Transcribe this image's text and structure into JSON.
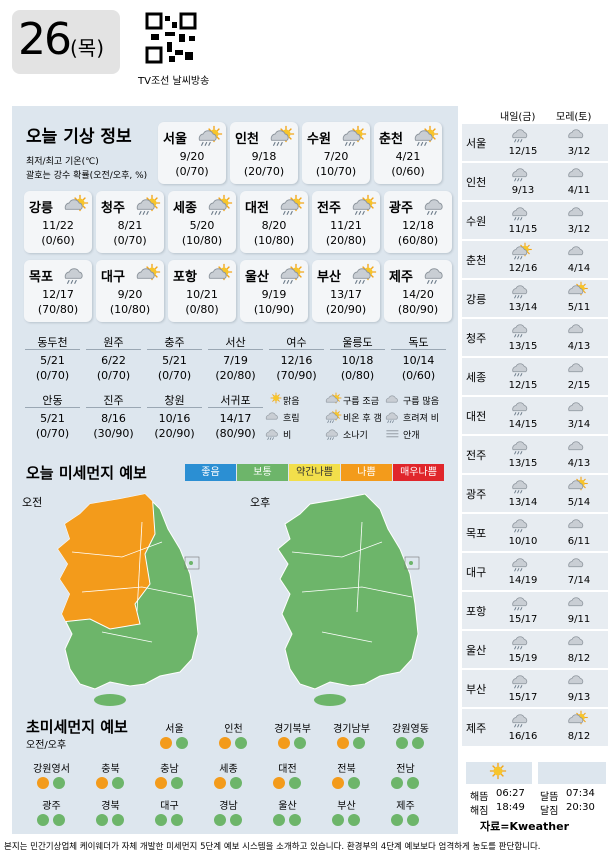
{
  "header": {
    "date": "26",
    "day": "(목)",
    "qr_caption": "TV조선 날씨방송"
  },
  "today": {
    "title": "오늘 기상 정보",
    "note1": "최저/최고 기온(℃)",
    "note2": "괄호는 강수 확률(오전/오후, %)",
    "cities": [
      {
        "name": "서울",
        "temp": "9/20",
        "rain": "(0/70)"
      },
      {
        "name": "인천",
        "temp": "9/18",
        "rain": "(20/70)"
      },
      {
        "name": "수원",
        "temp": "7/20",
        "rain": "(10/70)"
      },
      {
        "name": "춘천",
        "temp": "4/21",
        "rain": "(0/60)"
      },
      {
        "name": "강릉",
        "temp": "11/22",
        "rain": "(0/60)"
      },
      {
        "name": "청주",
        "temp": "8/21",
        "rain": "(0/70)"
      },
      {
        "name": "세종",
        "temp": "5/20",
        "rain": "(10/80)"
      },
      {
        "name": "대전",
        "temp": "8/20",
        "rain": "(10/80)"
      },
      {
        "name": "전주",
        "temp": "11/21",
        "rain": "(20/80)"
      },
      {
        "name": "광주",
        "temp": "12/18",
        "rain": "(60/80)"
      },
      {
        "name": "목포",
        "temp": "12/17",
        "rain": "(70/80)"
      },
      {
        "name": "대구",
        "temp": "9/20",
        "rain": "(10/80)"
      },
      {
        "name": "포항",
        "temp": "10/21",
        "rain": "(0/80)"
      },
      {
        "name": "울산",
        "temp": "9/19",
        "rain": "(10/90)"
      },
      {
        "name": "부산",
        "temp": "13/17",
        "rain": "(20/90)"
      },
      {
        "name": "제주",
        "temp": "14/20",
        "rain": "(80/90)"
      }
    ],
    "small": [
      {
        "name": "동두천",
        "temp": "5/21",
        "rain": "(0/70)"
      },
      {
        "name": "원주",
        "temp": "6/22",
        "rain": "(0/70)"
      },
      {
        "name": "충주",
        "temp": "5/21",
        "rain": "(0/70)"
      },
      {
        "name": "서산",
        "temp": "7/19",
        "rain": "(20/80)"
      },
      {
        "name": "여수",
        "temp": "12/16",
        "rain": "(70/90)"
      },
      {
        "name": "울릉도",
        "temp": "10/18",
        "rain": "(0/80)"
      },
      {
        "name": "독도",
        "temp": "10/14",
        "rain": "(0/60)"
      },
      {
        "name": "안동",
        "temp": "5/21",
        "rain": "(0/70)"
      },
      {
        "name": "진주",
        "temp": "8/16",
        "rain": "(30/90)"
      },
      {
        "name": "창원",
        "temp": "10/16",
        "rain": "(20/90)"
      },
      {
        "name": "서귀포",
        "temp": "14/17",
        "rain": "(80/90)"
      }
    ],
    "legend": [
      "맑음",
      "구름 조금",
      "구름 많음",
      "흐림",
      "비온 후 갬",
      "흐려져 비",
      "비",
      "소나기",
      "안개"
    ]
  },
  "dust": {
    "title": "오늘 미세먼지 예보",
    "am": "오전",
    "pm": "오후",
    "levels": [
      {
        "name": "좋음",
        "color": "#2b8fd3"
      },
      {
        "name": "보통",
        "color": "#6db56a"
      },
      {
        "name": "약간나쁨",
        "color": "#f2df4b"
      },
      {
        "name": "나쁨",
        "color": "#f39b1b"
      },
      {
        "name": "매우나쁨",
        "color": "#e0262b"
      }
    ]
  },
  "fine": {
    "title": "초미세먼지 예보",
    "subtitle": "오전/오후",
    "regions": [
      {
        "name": "서울",
        "am": "나쁨",
        "pm": "보통"
      },
      {
        "name": "인천",
        "am": "나쁨",
        "pm": "보통"
      },
      {
        "name": "경기북부",
        "am": "나쁨",
        "pm": "보통"
      },
      {
        "name": "경기남부",
        "am": "나쁨",
        "pm": "보통"
      },
      {
        "name": "강원영동",
        "am": "보통",
        "pm": "보통"
      },
      {
        "name": "강원영서",
        "am": "나쁨",
        "pm": "보통"
      },
      {
        "name": "충북",
        "am": "나쁨",
        "pm": "보통"
      },
      {
        "name": "충남",
        "am": "나쁨",
        "pm": "보통"
      },
      {
        "name": "세종",
        "am": "나쁨",
        "pm": "보통"
      },
      {
        "name": "대전",
        "am": "나쁨",
        "pm": "보통"
      },
      {
        "name": "전북",
        "am": "나쁨",
        "pm": "보통"
      },
      {
        "name": "전남",
        "am": "보통",
        "pm": "보통"
      },
      {
        "name": "광주",
        "am": "보통",
        "pm": "보통"
      },
      {
        "name": "경북",
        "am": "보통",
        "pm": "보통"
      },
      {
        "name": "대구",
        "am": "보통",
        "pm": "보통"
      },
      {
        "name": "경남",
        "am": "보통",
        "pm": "보통"
      },
      {
        "name": "울산",
        "am": "보통",
        "pm": "보통"
      },
      {
        "name": "부산",
        "am": "보통",
        "pm": "보통"
      },
      {
        "name": "제주",
        "am": "보통",
        "pm": "보통"
      }
    ]
  },
  "forecast": {
    "day1": "내일(금)",
    "day2": "모레(토)",
    "rows": [
      {
        "name": "서울",
        "d1": "12/15",
        "d2": "3/12"
      },
      {
        "name": "인천",
        "d1": "9/13",
        "d2": "4/11"
      },
      {
        "name": "수원",
        "d1": "11/15",
        "d2": "3/12"
      },
      {
        "name": "춘천",
        "d1": "12/16",
        "d2": "4/14"
      },
      {
        "name": "강릉",
        "d1": "13/14",
        "d2": "5/11"
      },
      {
        "name": "청주",
        "d1": "13/15",
        "d2": "4/13"
      },
      {
        "name": "세종",
        "d1": "12/15",
        "d2": "2/15"
      },
      {
        "name": "대전",
        "d1": "14/15",
        "d2": "3/14"
      },
      {
        "name": "전주",
        "d1": "13/15",
        "d2": "4/13"
      },
      {
        "name": "광주",
        "d1": "13/14",
        "d2": "5/14"
      },
      {
        "name": "목포",
        "d1": "10/10",
        "d2": "6/11"
      },
      {
        "name": "대구",
        "d1": "14/19",
        "d2": "7/14"
      },
      {
        "name": "포항",
        "d1": "15/17",
        "d2": "9/11"
      },
      {
        "name": "울산",
        "d1": "15/19",
        "d2": "8/12"
      },
      {
        "name": "부산",
        "d1": "15/17",
        "d2": "9/13"
      },
      {
        "name": "제주",
        "d1": "16/16",
        "d2": "8/12"
      }
    ]
  },
  "sun": {
    "rise_label": "해뜸",
    "rise": "06:27",
    "set_label": "해짐",
    "set": "18:49",
    "moonrise_label": "달뜸",
    "moonrise": "07:34",
    "moonset_label": "달짐",
    "moonset": "20:30"
  },
  "source": "자료=Kweather",
  "footer": "본지는 민간기상업체 케이웨더가 자체 개발한 미세먼지 5단계 예보 시스템을 소개하고 있습니다. 환경부의 4단계 예보보다 엄격하게 농도를 판단합니다."
}
